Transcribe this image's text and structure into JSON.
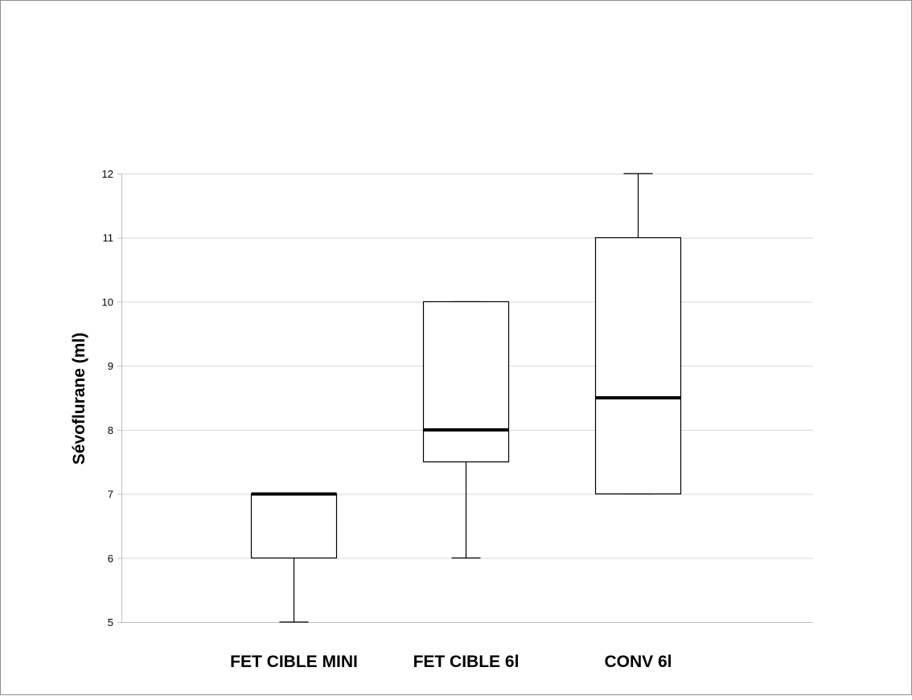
{
  "chart_data": {
    "type": "boxplot",
    "title": "",
    "xlabel": "",
    "ylabel": "Sévoflurane (ml)",
    "ylim": [
      5,
      12
    ],
    "yticks": [
      "5",
      "6",
      "7",
      "8",
      "9",
      "10",
      "11",
      "12"
    ],
    "grid": true,
    "categories": [
      "FET CIBLE MINI",
      "FET CIBLE 6l",
      "CONV 6l"
    ],
    "boxes": [
      {
        "min": 5,
        "q1": 6,
        "median": 7,
        "q3": 7,
        "max": 7
      },
      {
        "min": 6,
        "q1": 7.5,
        "median": 8,
        "q3": 10,
        "max": 10
      },
      {
        "min": 7,
        "q1": 7,
        "median": 8.5,
        "q3": 11,
        "max": 12
      }
    ],
    "colors": {
      "box_stroke": "#000000",
      "box_fill": "#ffffff",
      "grid": "#d9d9d9",
      "axis": "#bfbfbf"
    }
  }
}
